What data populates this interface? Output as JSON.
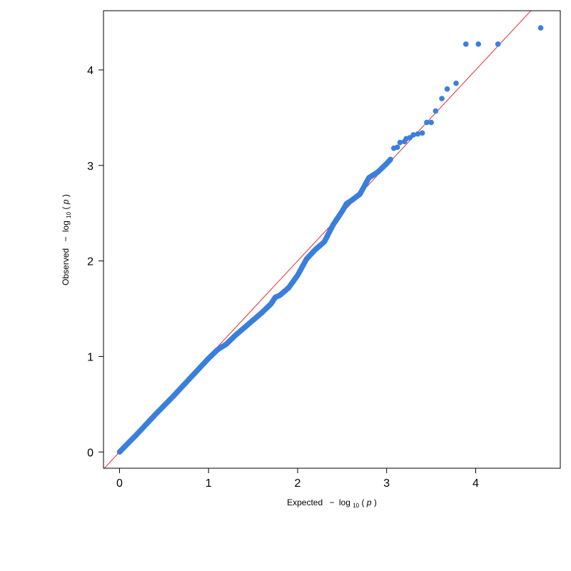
{
  "chart_data": {
    "type": "scatter",
    "title": "",
    "xlabel": {
      "prefix": "Expected",
      "minus": "−",
      "log": "log",
      "sub": "10",
      "paren_open": "(",
      "var": "p",
      "paren_close": ")"
    },
    "ylabel": {
      "prefix": "Observed",
      "minus": "−",
      "log": "log",
      "sub": "10",
      "paren_open": "(",
      "var": "p",
      "paren_close": ")"
    },
    "xlim": [
      -0.18,
      4.95
    ],
    "ylim": [
      -0.17,
      4.62
    ],
    "xticks": [
      0,
      1,
      2,
      3,
      4
    ],
    "yticks": [
      0,
      1,
      2,
      3,
      4
    ],
    "xtick_labels": [
      "0",
      "1",
      "2",
      "3",
      "4"
    ],
    "ytick_labels": [
      "0",
      "1",
      "2",
      "3",
      "4"
    ],
    "grid": false,
    "point_color": "#3a7fdc",
    "reference_line": {
      "slope": 1,
      "intercept": 0,
      "color": "#e0302a"
    },
    "series": [
      {
        "curve": [
          [
            0.0,
            0.0
          ],
          [
            0.2,
            0.19
          ],
          [
            0.4,
            0.39
          ],
          [
            0.6,
            0.58
          ],
          [
            0.8,
            0.78
          ],
          [
            1.0,
            0.98
          ],
          [
            1.1,
            1.07
          ],
          [
            1.2,
            1.13
          ],
          [
            1.3,
            1.22
          ],
          [
            1.4,
            1.3
          ],
          [
            1.5,
            1.38
          ],
          [
            1.6,
            1.46
          ],
          [
            1.7,
            1.55
          ],
          [
            1.75,
            1.62
          ],
          [
            1.8,
            1.64
          ],
          [
            1.9,
            1.72
          ],
          [
            2.0,
            1.85
          ],
          [
            2.1,
            2.02
          ],
          [
            2.2,
            2.12
          ],
          [
            2.3,
            2.2
          ],
          [
            2.35,
            2.29
          ],
          [
            2.4,
            2.38
          ],
          [
            2.5,
            2.52
          ],
          [
            2.55,
            2.6
          ],
          [
            2.6,
            2.63
          ],
          [
            2.7,
            2.7
          ],
          [
            2.8,
            2.87
          ],
          [
            2.9,
            2.93
          ],
          [
            3.0,
            3.02
          ],
          [
            3.05,
            3.07
          ]
        ],
        "tail": [
          [
            3.08,
            3.18
          ],
          [
            3.12,
            3.19
          ],
          [
            3.15,
            3.24
          ],
          [
            3.2,
            3.25
          ],
          [
            3.22,
            3.28
          ],
          [
            3.26,
            3.29
          ],
          [
            3.3,
            3.32
          ],
          [
            3.35,
            3.33
          ],
          [
            3.4,
            3.34
          ],
          [
            3.45,
            3.45
          ],
          [
            3.5,
            3.45
          ],
          [
            3.55,
            3.57
          ],
          [
            3.62,
            3.7
          ],
          [
            3.68,
            3.8
          ],
          [
            3.78,
            3.86
          ],
          [
            3.89,
            4.27
          ],
          [
            4.03,
            4.27
          ],
          [
            4.25,
            4.27
          ],
          [
            4.73,
            4.44
          ]
        ]
      }
    ]
  }
}
